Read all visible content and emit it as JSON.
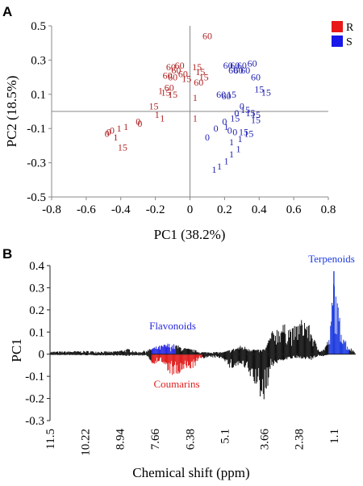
{
  "panels": {
    "a_label": "A",
    "b_label": "B"
  },
  "colors": {
    "R": "#b02323",
    "S": "#1f1fb0",
    "black": "#111111",
    "flavonoids": "#2a2ae0",
    "coumarins": "#e01e1e",
    "terpenoids": "#1e3ce0"
  },
  "chart_data": [
    {
      "type": "scatter",
      "title": "",
      "xlabel": "PC1 (38.2%)",
      "ylabel": "PC2 (18.5%)",
      "xlim": [
        -0.8,
        0.8
      ],
      "ylim": [
        -0.5,
        0.5
      ],
      "xticks": [
        "-0.8",
        "-0.6",
        "-0.4",
        "-0.2",
        "0",
        "0.2",
        "0.4",
        "0.6",
        "0.8"
      ],
      "yticks": [
        "0.5",
        "0.3",
        "0.1",
        "-0.1",
        "-0.3",
        "-0.5"
      ],
      "legend": {
        "position": "top-right",
        "entries": [
          "R",
          "S"
        ]
      },
      "reference_lines": {
        "x": 0,
        "y": 0
      },
      "series": [
        {
          "name": "R",
          "points": [
            {
              "x": 0.1,
              "y": 0.44,
              "label": "60"
            },
            {
              "x": -0.11,
              "y": 0.26,
              "label": "60"
            },
            {
              "x": -0.06,
              "y": 0.27,
              "label": "60"
            },
            {
              "x": -0.08,
              "y": 0.24,
              "label": "60"
            },
            {
              "x": -0.04,
              "y": 0.22,
              "label": "60"
            },
            {
              "x": 0.04,
              "y": 0.26,
              "label": "15"
            },
            {
              "x": 0.06,
              "y": 0.23,
              "label": "15"
            },
            {
              "x": 0.08,
              "y": 0.2,
              "label": "15"
            },
            {
              "x": -0.1,
              "y": 0.2,
              "label": "60"
            },
            {
              "x": -0.13,
              "y": 0.21,
              "label": "60"
            },
            {
              "x": -0.02,
              "y": 0.19,
              "label": "15"
            },
            {
              "x": 0.05,
              "y": 0.17,
              "label": "60"
            },
            {
              "x": -0.12,
              "y": 0.14,
              "label": "60"
            },
            {
              "x": -0.17,
              "y": 0.12,
              "label": "1"
            },
            {
              "x": -0.14,
              "y": 0.11,
              "label": "15"
            },
            {
              "x": -0.1,
              "y": 0.1,
              "label": "15"
            },
            {
              "x": 0.03,
              "y": 0.08,
              "label": "1"
            },
            {
              "x": -0.21,
              "y": 0.03,
              "label": "15"
            },
            {
              "x": -0.19,
              "y": -0.02,
              "label": "1"
            },
            {
              "x": -0.16,
              "y": -0.04,
              "label": "1"
            },
            {
              "x": 0.03,
              "y": -0.04,
              "label": "1"
            },
            {
              "x": -0.3,
              "y": -0.06,
              "label": "0"
            },
            {
              "x": -0.29,
              "y": -0.07,
              "label": "0"
            },
            {
              "x": -0.37,
              "y": -0.09,
              "label": "1"
            },
            {
              "x": -0.41,
              "y": -0.1,
              "label": "1"
            },
            {
              "x": -0.45,
              "y": -0.11,
              "label": "0"
            },
            {
              "x": -0.47,
              "y": -0.12,
              "label": "0"
            },
            {
              "x": -0.48,
              "y": -0.13,
              "label": "0"
            },
            {
              "x": -0.43,
              "y": -0.15,
              "label": "1"
            },
            {
              "x": -0.39,
              "y": -0.21,
              "label": "15"
            }
          ]
        },
        {
          "name": "S",
          "points": [
            {
              "x": 0.22,
              "y": 0.27,
              "label": "60"
            },
            {
              "x": 0.26,
              "y": 0.27,
              "label": "60"
            },
            {
              "x": 0.3,
              "y": 0.27,
              "label": "60"
            },
            {
              "x": 0.36,
              "y": 0.28,
              "label": "60"
            },
            {
              "x": 0.25,
              "y": 0.24,
              "label": "60"
            },
            {
              "x": 0.28,
              "y": 0.24,
              "label": "60"
            },
            {
              "x": 0.32,
              "y": 0.24,
              "label": "60"
            },
            {
              "x": 0.38,
              "y": 0.2,
              "label": "60"
            },
            {
              "x": 0.4,
              "y": 0.13,
              "label": "15"
            },
            {
              "x": 0.44,
              "y": 0.11,
              "label": "15"
            },
            {
              "x": 0.18,
              "y": 0.1,
              "label": "60"
            },
            {
              "x": 0.21,
              "y": 0.09,
              "label": "60"
            },
            {
              "x": 0.24,
              "y": 0.1,
              "label": "15"
            },
            {
              "x": 0.3,
              "y": 0.03,
              "label": "0"
            },
            {
              "x": 0.32,
              "y": 0.01,
              "label": "15"
            },
            {
              "x": 0.27,
              "y": -0.01,
              "label": "0"
            },
            {
              "x": 0.35,
              "y": -0.01,
              "label": "15"
            },
            {
              "x": 0.38,
              "y": -0.02,
              "label": "15"
            },
            {
              "x": 0.26,
              "y": -0.04,
              "label": "15"
            },
            {
              "x": 0.38,
              "y": -0.05,
              "label": "15"
            },
            {
              "x": 0.2,
              "y": -0.06,
              "label": "0"
            },
            {
              "x": 0.15,
              "y": -0.1,
              "label": "0"
            },
            {
              "x": 0.21,
              "y": -0.09,
              "label": "1"
            },
            {
              "x": 0.23,
              "y": -0.11,
              "label": "0"
            },
            {
              "x": 0.26,
              "y": -0.12,
              "label": "0"
            },
            {
              "x": 0.31,
              "y": -0.12,
              "label": "15"
            },
            {
              "x": 0.34,
              "y": -0.13,
              "label": "15"
            },
            {
              "x": 0.29,
              "y": -0.16,
              "label": "1"
            },
            {
              "x": 0.1,
              "y": -0.15,
              "label": "0"
            },
            {
              "x": 0.24,
              "y": -0.18,
              "label": "1"
            },
            {
              "x": 0.28,
              "y": -0.22,
              "label": "1"
            },
            {
              "x": 0.24,
              "y": -0.25,
              "label": "1"
            },
            {
              "x": 0.21,
              "y": -0.29,
              "label": "1"
            },
            {
              "x": 0.17,
              "y": -0.32,
              "label": "1"
            },
            {
              "x": 0.14,
              "y": -0.34,
              "label": "1"
            }
          ]
        }
      ]
    },
    {
      "type": "bar",
      "title": "",
      "xlabel": "Chemical shift (ppm)",
      "ylabel": "PC1",
      "xlim": [
        11.5,
        0.3
      ],
      "ylim": [
        -0.3,
        0.4
      ],
      "xticks": [
        "11.5",
        "10.22",
        "8.94",
        "7.66",
        "6.38",
        "5.1",
        "3.66",
        "2.38",
        "1.1"
      ],
      "yticks": [
        "0.4",
        "0.3",
        "0.2",
        "0.1",
        "0",
        "-0.1",
        "-0.2",
        "-0.3"
      ],
      "annotations": [
        {
          "text": "Flavonoids",
          "color": "flavonoids"
        },
        {
          "text": "Coumarins",
          "color": "coumarins"
        },
        {
          "text": "Terpenoids",
          "color": "terpenoids"
        }
      ],
      "spectrum_profile": [
        {
          "ppm": 11.5,
          "top": 0.012,
          "bot": -0.004
        },
        {
          "ppm": 10.2,
          "top": 0.015,
          "bot": -0.005
        },
        {
          "ppm": 9.2,
          "top": 0.012,
          "bot": -0.006
        },
        {
          "ppm": 8.6,
          "top": 0.025,
          "bot": -0.008
        },
        {
          "ppm": 8.3,
          "top": 0.01,
          "bot": -0.005
        },
        {
          "ppm": 7.9,
          "top": 0.02,
          "bot": -0.01
        },
        {
          "ppm": 7.78,
          "top": 0.03,
          "bot": -0.05
        },
        {
          "ppm": 7.45,
          "top": 0.04,
          "bot": -0.03
        },
        {
          "ppm": 7.2,
          "top": 0.05,
          "bot": -0.08
        },
        {
          "ppm": 6.9,
          "top": 0.045,
          "bot": -0.11
        },
        {
          "ppm": 6.6,
          "top": 0.03,
          "bot": -0.08
        },
        {
          "ppm": 6.2,
          "top": 0.02,
          "bot": -0.06
        },
        {
          "ppm": 6.0,
          "top": 0.01,
          "bot": -0.02
        },
        {
          "ppm": 5.6,
          "top": 0.01,
          "bot": -0.015
        },
        {
          "ppm": 5.15,
          "top": 0.01,
          "bot": -0.02
        },
        {
          "ppm": 4.9,
          "top": 0.02,
          "bot": -0.07
        },
        {
          "ppm": 4.5,
          "top": 0.04,
          "bot": -0.05
        },
        {
          "ppm": 4.2,
          "top": 0.03,
          "bot": -0.1
        },
        {
          "ppm": 3.9,
          "top": 0.02,
          "bot": -0.16
        },
        {
          "ppm": 3.75,
          "top": 0.02,
          "bot": -0.22
        },
        {
          "ppm": 3.6,
          "top": 0.03,
          "bot": -0.2
        },
        {
          "ppm": 3.4,
          "top": 0.1,
          "bot": -0.06
        },
        {
          "ppm": 3.0,
          "top": 0.14,
          "bot": -0.03
        },
        {
          "ppm": 2.6,
          "top": 0.12,
          "bot": -0.02
        },
        {
          "ppm": 2.2,
          "top": 0.17,
          "bot": -0.02
        },
        {
          "ppm": 1.95,
          "top": 0.12,
          "bot": -0.03
        },
        {
          "ppm": 1.7,
          "top": 0.03,
          "bot": -0.01
        },
        {
          "ppm": 1.5,
          "top": 0.02,
          "bot": -0.01
        },
        {
          "ppm": 1.25,
          "top": 0.08,
          "bot": 0.0
        },
        {
          "ppm": 1.1,
          "top": 0.38,
          "bot": 0.0
        },
        {
          "ppm": 1.0,
          "top": 0.26,
          "bot": 0.0
        },
        {
          "ppm": 0.85,
          "top": 0.14,
          "bot": 0.0
        },
        {
          "ppm": 0.6,
          "top": 0.04,
          "bot": 0.0
        },
        {
          "ppm": 0.3,
          "top": 0.01,
          "bot": 0.0
        }
      ],
      "highlight_regions": [
        {
          "name": "Flavonoids",
          "from_ppm": 7.78,
          "to_ppm": 6.9,
          "side": "positive",
          "color": "flavonoids"
        },
        {
          "name": "Coumarins",
          "from_ppm": 7.78,
          "to_ppm": 5.9,
          "side": "negative",
          "color": "coumarins"
        },
        {
          "name": "Terpenoids",
          "from_ppm": 1.3,
          "to_ppm": 0.55,
          "side": "positive",
          "color": "terpenoids"
        }
      ]
    }
  ]
}
